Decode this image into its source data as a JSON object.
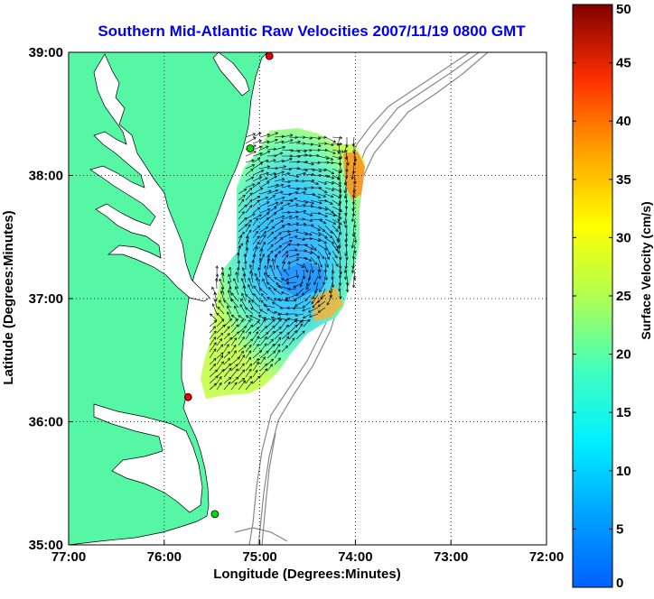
{
  "chart_data": {
    "type": "heatmap",
    "title": "Southern Mid-Atlantic Raw Velocities 2007/11/19 0800 GMT",
    "xlabel": "Longitude (Degrees:Minutes)",
    "ylabel": "Latitude (Degrees:Minutes)",
    "x_ticks": [
      "77:00",
      "76:00",
      "75:00",
      "74:00",
      "73:00",
      "72:00"
    ],
    "y_ticks": [
      "39:00",
      "38:00",
      "37:00",
      "36:00",
      "35:00"
    ],
    "x_range_deg_west": [
      77,
      72
    ],
    "y_range_deg_north": [
      35,
      39
    ],
    "grid": "dotted",
    "colorbar": {
      "label": "Surface Velocity (cm/s)",
      "ticks": [
        "50",
        "45",
        "40",
        "35",
        "30",
        "25",
        "20",
        "15",
        "10",
        "5",
        "0"
      ],
      "range": [
        0,
        50
      ],
      "colormap": "jet"
    },
    "stations": [
      {
        "lon": -74.9,
        "lat": 38.97,
        "status": "red"
      },
      {
        "lon": -75.1,
        "lat": 38.22,
        "status": "green"
      },
      {
        "lon": -75.75,
        "lat": 36.2,
        "status": "red"
      },
      {
        "lon": -75.47,
        "lat": 35.25,
        "status": "green"
      }
    ],
    "colors": {
      "land": "#55f7a5",
      "ocean": "#ffffff",
      "title": "#0000ee",
      "bathymetry": "#888888",
      "station_ok": "#00dd00",
      "station_down": "#ee0000"
    }
  }
}
